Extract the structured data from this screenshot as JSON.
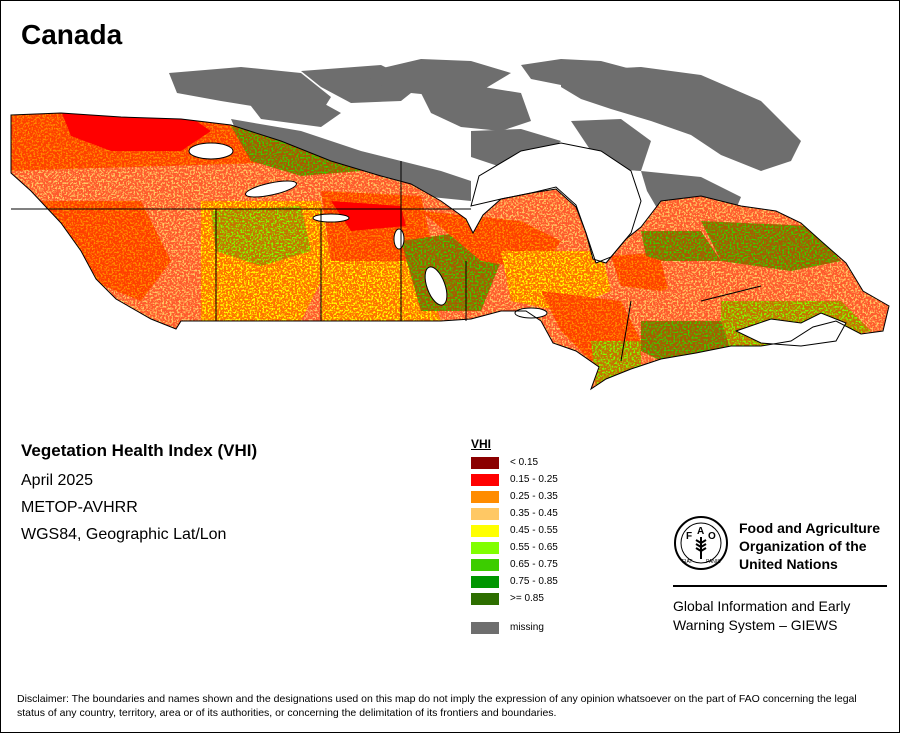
{
  "map_title": "Canada",
  "info": {
    "heading": "Vegetation Health Index (VHI)",
    "period": "April 2025",
    "sensor": "METOP-AVHRR",
    "projection": "WGS84, Geographic Lat/Lon"
  },
  "legend": {
    "title": "VHI",
    "items": [
      {
        "label": "< 0.15",
        "color": "#8b0000"
      },
      {
        "label": "0.15 - 0.25",
        "color": "#ff0000"
      },
      {
        "label": "0.25 - 0.35",
        "color": "#ff8c00"
      },
      {
        "label": "0.35 - 0.45",
        "color": "#ffc864"
      },
      {
        "label": "0.45 - 0.55",
        "color": "#ffff00"
      },
      {
        "label": "0.55 - 0.65",
        "color": "#80ff00"
      },
      {
        "label": "0.65 - 0.75",
        "color": "#3ccd00"
      },
      {
        "label": "0.75 - 0.85",
        "color": "#009600"
      },
      {
        "label": ">= 0.85",
        "color": "#2d6e00"
      },
      {
        "label": "missing",
        "color": "#6e6e6e"
      }
    ]
  },
  "organization": {
    "logo_lettering": "FAO FIAT PANIS",
    "name_lines": [
      "Food and Agriculture",
      "Organization of the",
      "United Nations"
    ],
    "program_lines": [
      "Global Information and Early",
      "Warning System – GIEWS"
    ]
  },
  "disclaimer": "Disclaimer: The boundaries and names shown and the designations used on this map do not imply the expression of any opinion whatsoever on the part of FAO concerning the legal status of any country, territory, area or of its authorities, or concerning the delimitation of its frontiers and boundaries."
}
